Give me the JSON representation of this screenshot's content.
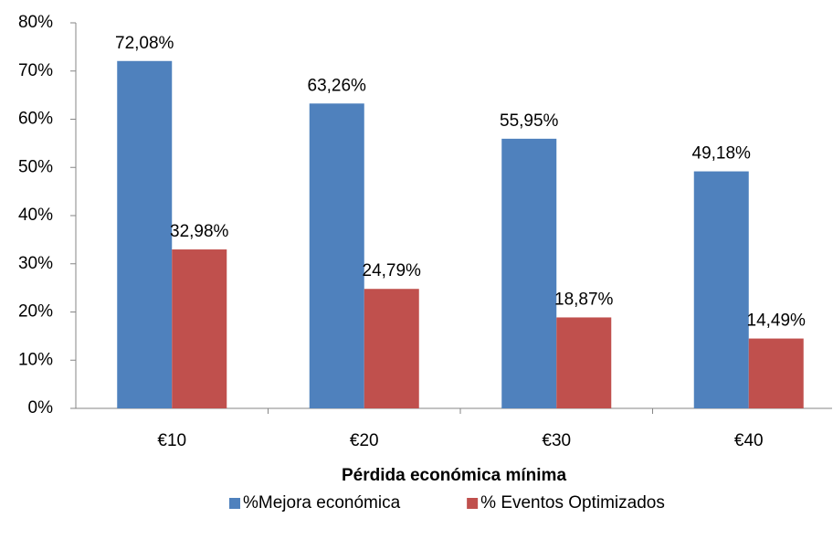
{
  "chart_data": {
    "type": "bar",
    "x_label": "Pérdida económica mínima",
    "categories": [
      "€10",
      "€20",
      "€30",
      "€40"
    ],
    "series": [
      {
        "name": "%Mejora económica",
        "color": "#4f81bd",
        "values": [
          72.08,
          63.26,
          55.95,
          49.18
        ],
        "value_labels": [
          "72,08%",
          "63,26%",
          "55,95%",
          "49,18%"
        ]
      },
      {
        "name": "% Eventos Optimizados",
        "color": "#c0504d",
        "values": [
          32.98,
          24.79,
          18.87,
          14.49
        ],
        "value_labels": [
          "32,98%",
          "24,79%",
          "18,87%",
          "14,49%"
        ]
      }
    ],
    "ylim": [
      0,
      80
    ],
    "yticks": [
      {
        "value": 0,
        "label": "0%"
      },
      {
        "value": 10,
        "label": "10%"
      },
      {
        "value": 20,
        "label": "20%"
      },
      {
        "value": 30,
        "label": "30%"
      },
      {
        "value": 40,
        "label": "40%"
      },
      {
        "value": 50,
        "label": "50%"
      },
      {
        "value": 60,
        "label": "60%"
      },
      {
        "value": 70,
        "label": "70%"
      },
      {
        "value": 80,
        "label": "80%"
      }
    ],
    "grid": false,
    "legend": "bottom"
  }
}
